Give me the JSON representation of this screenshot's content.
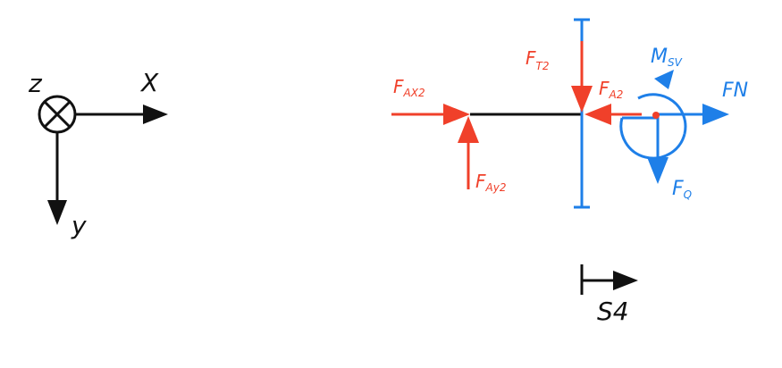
{
  "coordinate_system": {
    "z_label": "z",
    "x_label": "X",
    "y_label": "y"
  },
  "forces": {
    "fax2": {
      "main": "F",
      "sub": "AX2"
    },
    "fay2": {
      "main": "F",
      "sub": "Ay2"
    },
    "ft2": {
      "main": "F",
      "sub": "T2"
    },
    "fa2": {
      "main": "F",
      "sub": "A2"
    },
    "msv": {
      "main": "M",
      "sub": "SV"
    },
    "fn": {
      "main": "F",
      "sub": "N"
    },
    "fq": {
      "main": "F",
      "sub": "Q"
    }
  },
  "section_marker": {
    "label": "S4"
  },
  "colors": {
    "black": "#111111",
    "reaction_red": "#f0402a",
    "internal_blue": "#1e7fe8"
  }
}
